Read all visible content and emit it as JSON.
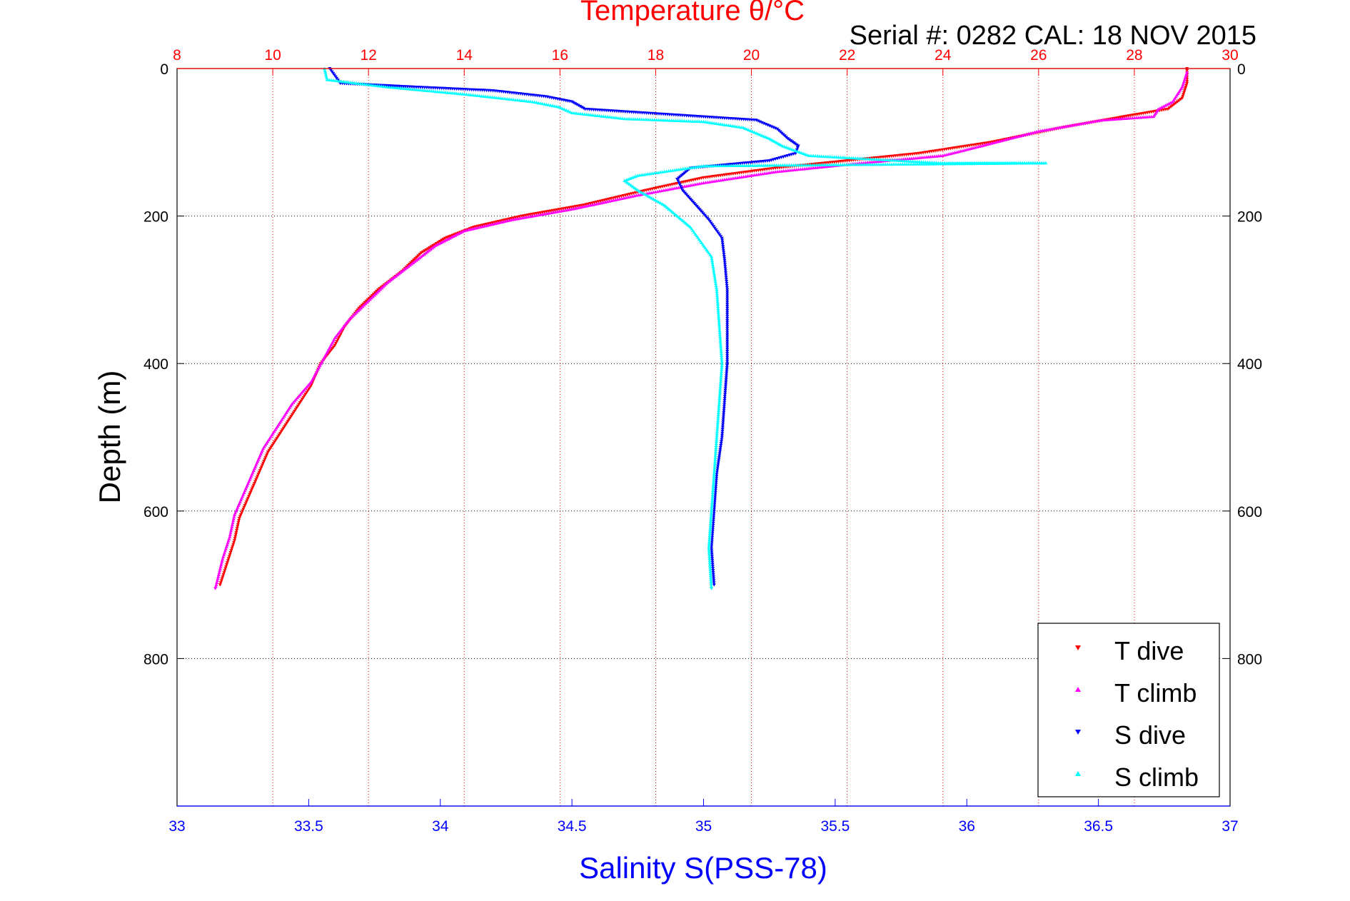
{
  "chart_data": {
    "type": "scatter",
    "title": "Temperature θ/°C",
    "subtitle": "Serial #: 0282  CAL: 18 NOV 2015",
    "ylabel": "Depth (m)",
    "xlabel_bottom": "Salinity S(PSS-78)",
    "ylim": [
      0,
      1000
    ],
    "y_reversed": true,
    "xlim_top": [
      8,
      30
    ],
    "xlim_bottom": [
      33,
      37
    ],
    "y_ticks": [
      "0",
      "200",
      "400",
      "600",
      "800"
    ],
    "y_tick_values": [
      0,
      200,
      400,
      600,
      800
    ],
    "x_top_ticks": [
      "8",
      "10",
      "12",
      "14",
      "16",
      "18",
      "20",
      "22",
      "24",
      "26",
      "28",
      "30"
    ],
    "x_top_tick_values": [
      8,
      10,
      12,
      14,
      16,
      18,
      20,
      22,
      24,
      26,
      28,
      30
    ],
    "x_bottom_ticks": [
      "33",
      "33.5",
      "34",
      "34.5",
      "35",
      "35.5",
      "36",
      "36.5",
      "37"
    ],
    "x_bottom_tick_values": [
      33,
      33.5,
      34,
      34.5,
      35,
      35.5,
      36,
      36.5,
      37
    ],
    "grid": true,
    "legend_position": "bottom-right",
    "series": [
      {
        "name": "T dive",
        "axis": "top",
        "color": "#ff0000",
        "marker": "triangle-down",
        "points": [
          [
            29.1,
            0
          ],
          [
            29.1,
            20
          ],
          [
            29.0,
            40
          ],
          [
            28.7,
            55
          ],
          [
            27.8,
            65
          ],
          [
            26.5,
            80
          ],
          [
            25.0,
            100
          ],
          [
            23.5,
            115
          ],
          [
            22.0,
            125
          ],
          [
            20.5,
            135
          ],
          [
            19.0,
            148
          ],
          [
            17.8,
            165
          ],
          [
            16.5,
            185
          ],
          [
            15.2,
            200
          ],
          [
            14.2,
            215
          ],
          [
            13.6,
            230
          ],
          [
            13.1,
            250
          ],
          [
            12.7,
            275
          ],
          [
            12.2,
            300
          ],
          [
            11.8,
            325
          ],
          [
            11.5,
            350
          ],
          [
            11.3,
            375
          ],
          [
            11.0,
            400
          ],
          [
            10.8,
            430
          ],
          [
            10.5,
            460
          ],
          [
            10.2,
            490
          ],
          [
            9.9,
            520
          ],
          [
            9.7,
            550
          ],
          [
            9.5,
            580
          ],
          [
            9.3,
            610
          ],
          [
            9.2,
            640
          ],
          [
            9.05,
            670
          ],
          [
            8.9,
            700
          ]
        ]
      },
      {
        "name": "T climb",
        "axis": "top",
        "color": "#ff00ff",
        "marker": "triangle-up",
        "points": [
          [
            29.1,
            5
          ],
          [
            29.0,
            25
          ],
          [
            28.8,
            45
          ],
          [
            28.5,
            55
          ],
          [
            28.4,
            65
          ],
          [
            27.3,
            70
          ],
          [
            26.0,
            85
          ],
          [
            24.8,
            105
          ],
          [
            24.0,
            118
          ],
          [
            22.3,
            128
          ],
          [
            20.5,
            140
          ],
          [
            19.0,
            155
          ],
          [
            17.6,
            172
          ],
          [
            16.3,
            190
          ],
          [
            15.0,
            205
          ],
          [
            14.0,
            220
          ],
          [
            13.4,
            240
          ],
          [
            12.9,
            265
          ],
          [
            12.4,
            290
          ],
          [
            12.0,
            315
          ],
          [
            11.6,
            340
          ],
          [
            11.3,
            365
          ],
          [
            11.05,
            395
          ],
          [
            10.8,
            425
          ],
          [
            10.4,
            455
          ],
          [
            10.1,
            485
          ],
          [
            9.8,
            515
          ],
          [
            9.6,
            545
          ],
          [
            9.4,
            575
          ],
          [
            9.2,
            605
          ],
          [
            9.1,
            635
          ],
          [
            8.95,
            665
          ],
          [
            8.8,
            705
          ]
        ]
      },
      {
        "name": "S dive",
        "axis": "bottom",
        "color": "#0000ff",
        "marker": "triangle-down",
        "points": [
          [
            33.58,
            0
          ],
          [
            33.62,
            20
          ],
          [
            33.9,
            25
          ],
          [
            34.2,
            30
          ],
          [
            34.4,
            38
          ],
          [
            34.5,
            45
          ],
          [
            34.55,
            55
          ],
          [
            35.2,
            70
          ],
          [
            35.28,
            82
          ],
          [
            35.32,
            95
          ],
          [
            35.36,
            105
          ],
          [
            35.35,
            115
          ],
          [
            35.25,
            125
          ],
          [
            34.95,
            135
          ],
          [
            34.9,
            150
          ],
          [
            34.92,
            165
          ],
          [
            34.97,
            185
          ],
          [
            35.02,
            205
          ],
          [
            35.07,
            230
          ],
          [
            35.08,
            260
          ],
          [
            35.09,
            300
          ],
          [
            35.09,
            350
          ],
          [
            35.09,
            400
          ],
          [
            35.08,
            450
          ],
          [
            35.07,
            500
          ],
          [
            35.05,
            550
          ],
          [
            35.04,
            600
          ],
          [
            35.03,
            650
          ],
          [
            35.04,
            700
          ]
        ]
      },
      {
        "name": "S climb",
        "axis": "bottom",
        "color": "#00ffff",
        "marker": "triangle-up",
        "points": [
          [
            33.56,
            0
          ],
          [
            33.57,
            15
          ],
          [
            33.8,
            25
          ],
          [
            34.1,
            35
          ],
          [
            34.35,
            45
          ],
          [
            34.45,
            52
          ],
          [
            34.5,
            60
          ],
          [
            34.7,
            68
          ],
          [
            35.0,
            72
          ],
          [
            35.15,
            80
          ],
          [
            35.25,
            95
          ],
          [
            35.3,
            105
          ],
          [
            35.4,
            118
          ],
          [
            35.9,
            128
          ],
          [
            36.3,
            128
          ],
          [
            35.0,
            132
          ],
          [
            34.75,
            145
          ],
          [
            34.7,
            152
          ],
          [
            34.75,
            165
          ],
          [
            34.85,
            185
          ],
          [
            34.95,
            215
          ],
          [
            35.03,
            255
          ],
          [
            35.05,
            300
          ],
          [
            35.06,
            350
          ],
          [
            35.07,
            400
          ],
          [
            35.06,
            450
          ],
          [
            35.05,
            500
          ],
          [
            35.04,
            550
          ],
          [
            35.03,
            600
          ],
          [
            35.02,
            650
          ],
          [
            35.03,
            705
          ]
        ]
      }
    ]
  }
}
